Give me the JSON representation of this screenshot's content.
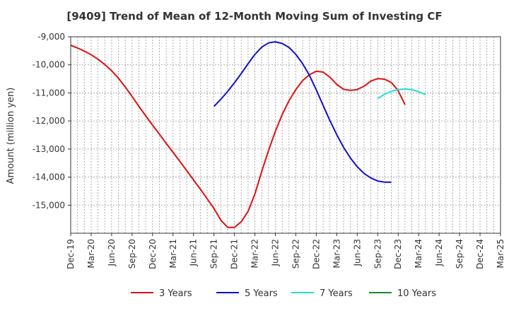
{
  "chart_data": {
    "type": "line",
    "title": "[9409]  Trend of Mean of 12-Month Moving Sum of Investing CF",
    "ylabel": "Amount (million yen)",
    "xlabel": "",
    "ylim": [
      -16000,
      -9000
    ],
    "yticks": [
      -9000,
      -10000,
      -11000,
      -12000,
      -13000,
      -14000,
      -15000
    ],
    "ytick_labels": [
      "-9,000",
      "-10,000",
      "-11,000",
      "-12,000",
      "-13,000",
      "-14,000",
      "-15,000"
    ],
    "x_months": 63,
    "x_tick_labels": [
      "Dec-19",
      "Mar-20",
      "Jun-20",
      "Sep-20",
      "Dec-20",
      "Mar-21",
      "Jun-21",
      "Sep-21",
      "Dec-21",
      "Mar-22",
      "Jun-22",
      "Sep-22",
      "Dec-22",
      "Mar-23",
      "Jun-23",
      "Sep-23",
      "Dec-23",
      "Mar-24",
      "Jun-24",
      "Sep-24",
      "Dec-24",
      "Mar-25"
    ],
    "grid": true,
    "legend_position": "bottom",
    "series": [
      {
        "name": "3 Years",
        "color": "#dd1111",
        "start_month": 0,
        "values": [
          -9300,
          -9400,
          -9510,
          -9640,
          -9800,
          -9990,
          -10210,
          -10480,
          -10790,
          -11130,
          -11480,
          -11820,
          -12150,
          -12470,
          -12800,
          -13120,
          -13440,
          -13770,
          -14100,
          -14430,
          -14770,
          -15120,
          -15530,
          -15790,
          -15790,
          -15590,
          -15220,
          -14600,
          -13800,
          -13050,
          -12370,
          -11770,
          -11280,
          -10880,
          -10560,
          -10350,
          -10230,
          -10260,
          -10440,
          -10700,
          -10870,
          -10910,
          -10880,
          -10760,
          -10580,
          -10490,
          -10510,
          -10630,
          -10920,
          -11420
        ]
      },
      {
        "name": "5 Years",
        "color": "#1111cc",
        "start_month": 21,
        "values": [
          -11480,
          -11230,
          -10950,
          -10640,
          -10310,
          -9960,
          -9630,
          -9370,
          -9220,
          -9180,
          -9240,
          -9380,
          -9630,
          -9960,
          -10380,
          -10890,
          -11450,
          -11990,
          -12490,
          -12940,
          -13320,
          -13630,
          -13870,
          -14030,
          -14140,
          -14180,
          -14180
        ]
      },
      {
        "name": "7 Years",
        "color": "#22dddd",
        "start_month": 45,
        "values": [
          -11200,
          -11050,
          -10940,
          -10880,
          -10860,
          -10880,
          -10960,
          -11060
        ]
      },
      {
        "name": "10 Years",
        "color": "#228822",
        "start_month": 0,
        "values": []
      }
    ]
  }
}
